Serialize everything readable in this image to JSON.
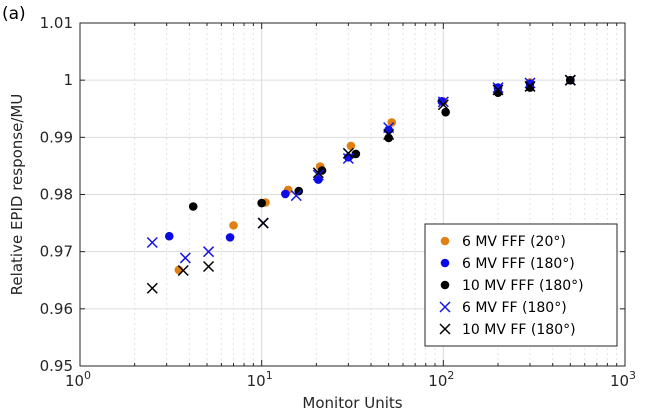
{
  "panel_label": "(a)",
  "chart_data": {
    "type": "scatter",
    "xlabel": "Monitor Units",
    "ylabel": "Relative EPID response/MU",
    "xscale": "log",
    "xlim": [
      1,
      1000
    ],
    "ylim": [
      0.95,
      1.01
    ],
    "x_ticks": [
      {
        "value": 1,
        "base": "10",
        "exp": "0"
      },
      {
        "value": 10,
        "base": "10",
        "exp": "1"
      },
      {
        "value": 100,
        "base": "10",
        "exp": "2"
      },
      {
        "value": 1000,
        "base": "10",
        "exp": "3"
      }
    ],
    "y_ticks": [
      {
        "value": 0.95,
        "label": "0.95"
      },
      {
        "value": 0.96,
        "label": "0.96"
      },
      {
        "value": 0.97,
        "label": "0.97"
      },
      {
        "value": 0.98,
        "label": "0.98"
      },
      {
        "value": 0.99,
        "label": "0.99"
      },
      {
        "value": 1.0,
        "label": "1"
      },
      {
        "value": 1.01,
        "label": "1.01"
      }
    ],
    "grid": true,
    "legend_position": "bottom-right",
    "series": [
      {
        "name": "6 MV FFF (20°)",
        "marker": "circle",
        "color": "#E07F12",
        "points": [
          [
            3.5,
            0.9668
          ],
          [
            7,
            0.9746
          ],
          [
            10.5,
            0.9786
          ],
          [
            14,
            0.9808
          ],
          [
            21,
            0.9849
          ],
          [
            31,
            0.9885
          ],
          [
            52,
            0.9926
          ],
          [
            100,
            0.9963
          ],
          [
            200,
            0.9985
          ],
          [
            300,
            0.9996
          ],
          [
            500,
            1.0
          ]
        ]
      },
      {
        "name": "6 MV FFF (180°)",
        "marker": "circle",
        "color": "#0A0AE6",
        "points": [
          [
            3.1,
            0.9727
          ],
          [
            6.7,
            0.9725
          ],
          [
            13.5,
            0.9801
          ],
          [
            20.5,
            0.9826
          ],
          [
            30,
            0.9865
          ],
          [
            50,
            0.9913
          ],
          [
            98,
            0.9963
          ],
          [
            200,
            0.9987
          ],
          [
            300,
            0.9994
          ],
          [
            500,
            1.0
          ]
        ]
      },
      {
        "name": "10 MV FFF (180°)",
        "marker": "circle",
        "color": "#000000",
        "points": [
          [
            4.2,
            0.9779
          ],
          [
            10,
            0.9785
          ],
          [
            16,
            0.9806
          ],
          [
            21.5,
            0.9842
          ],
          [
            33,
            0.9871
          ],
          [
            50,
            0.9899
          ],
          [
            103,
            0.9944
          ],
          [
            200,
            0.9978
          ],
          [
            300,
            0.9987
          ],
          [
            500,
            1.0
          ]
        ]
      },
      {
        "name": "6 MV FF (180°)",
        "marker": "x",
        "color": "#1414E6",
        "points": [
          [
            2.5,
            0.9716
          ],
          [
            3.8,
            0.9689
          ],
          [
            5.1,
            0.97
          ],
          [
            10.2,
            0.975
          ],
          [
            15.5,
            0.9798
          ],
          [
            20.5,
            0.9834
          ],
          [
            30,
            0.9863
          ],
          [
            50,
            0.9917
          ],
          [
            100,
            0.9962
          ],
          [
            200,
            0.9987
          ],
          [
            300,
            0.9995
          ],
          [
            500,
            1.0
          ]
        ]
      },
      {
        "name": "10 MV FF (180°)",
        "marker": "x",
        "color": "#000000",
        "points": [
          [
            2.5,
            0.9636
          ],
          [
            3.7,
            0.9667
          ],
          [
            5.1,
            0.9674
          ],
          [
            10.2,
            0.975
          ],
          [
            20.5,
            0.9838
          ],
          [
            30,
            0.9872
          ],
          [
            50,
            0.9905
          ],
          [
            100,
            0.9957
          ],
          [
            200,
            0.9983
          ],
          [
            300,
            0.9989
          ],
          [
            500,
            1.0
          ]
        ]
      }
    ]
  }
}
